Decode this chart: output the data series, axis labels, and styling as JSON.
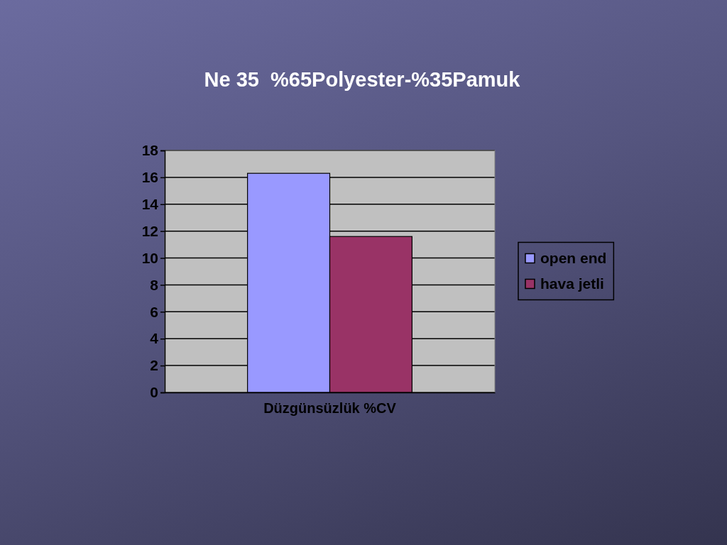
{
  "chart_data": {
    "type": "bar",
    "title": "Ne 35  %65Polyester-%35Pamuk",
    "categories": [
      "Düzgünsüzlük %CV"
    ],
    "series": [
      {
        "name": "open end",
        "color": "#9999ff",
        "values": [
          16.3
        ]
      },
      {
        "name": "hava jetli",
        "color": "#993366",
        "values": [
          11.6
        ]
      }
    ],
    "ylim": [
      0,
      18
    ],
    "yticks": [
      0,
      2,
      4,
      6,
      8,
      10,
      12,
      14,
      16,
      18
    ],
    "grid": "y",
    "legend": "right"
  }
}
